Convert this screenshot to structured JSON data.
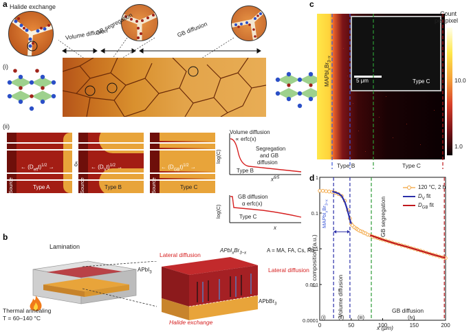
{
  "panel_a": {
    "letter": "a",
    "halide_title": "Halide exchange",
    "volume_diffusion": "Volume diffusion",
    "gb_segregation": "GB segregation",
    "gb_diffusion": "GB diffusion",
    "sub_i": "(i)",
    "sub_ii": "(ii)",
    "diff_A": "⟵ (Dₑₒₒt)¹ᐟ² ⟶",
    "diff_A_base": "(D",
    "diff_A_sub": "eff",
    "diff_B_sub": "V",
    "diff_C_sub": "GB",
    "diff_tail": "t)",
    "diff_exp": "1/2",
    "delta": "δ",
    "source": "Source",
    "type_a": "Type A",
    "type_b": "Type B",
    "type_c": "Type C",
    "plot1_vol": "Volume diffusion",
    "plot1_erfc": "∝ erfc(x)",
    "plot1_seg": "Segregation",
    "plot1_and": "and GB",
    "plot1_diff": "diffusion",
    "plot1_type": "Type B",
    "plot1_ylabel": "log(C)",
    "plot1_x": "x",
    "plot1_xexp": "6/5",
    "plot2_gb": "GB diffusion",
    "plot2_erfc": "α erfc(x)",
    "plot2_type": "Type C",
    "plot2_ylabel": "log(C)",
    "plot2_x": "x"
  },
  "panel_b": {
    "letter": "b",
    "lamination": "Lamination",
    "formula": "APbI",
    "formula_sub": "x",
    "formula_mid": "Br",
    "formula_sub2": "3−x",
    "sites": "A = MA, FA, Cs, Rb",
    "lateral_1": "Lateral diffusion",
    "lateral_2": "Lateral diffusion",
    "apbi3": "APbI",
    "apbi3_sub": "3",
    "apbbr3": "APbBr",
    "apbbr3_sub": "3",
    "thermal": "Thermal annealing",
    "temp": "T = 60–140 °C",
    "halide": "Halide exchange"
  },
  "panel_c": {
    "letter": "c",
    "count_1": "Count",
    "count_2": "per pixel",
    "tick_10": "10.0",
    "tick_1": "1.0",
    "mapbi": "MAPbI",
    "mapbi_sub": "x",
    "mapbi_mid": "Br",
    "mapbi_sub2": "3−x",
    "scalebar": "5 μm",
    "type_b": "Type B",
    "type_c": "Type C"
  },
  "panel_d": {
    "letter": "d",
    "legend_exp": "120 °C, 2 h",
    "legend_dv": "D",
    "legend_dv_sub": "V",
    "legend_dv_tail": " fit",
    "legend_dgb": "D",
    "legend_dgb_sub": "GB",
    "legend_dgb_tail": " fit",
    "ylabel": "I⁻ composition (a.u.)",
    "xlabel": "x (μm)",
    "gb_seg": "GB segregation",
    "vol_diff": "Volume diffusion",
    "gb_diff": "GB diffusion",
    "region_i": "(i)",
    "region_ii": "(ii)",
    "region_iii": "(iii)",
    "region_iv": "(iv)",
    "mapbi": "MAPbI",
    "mapbi_sub": "x",
    "mapbi_mid": "Br",
    "mapbi_sub2": "3−x"
  },
  "chart_data": {
    "type": "scatter",
    "xlabel": "x (μm)",
    "ylabel": "I⁻ composition (a.u.)",
    "xlim": [
      0,
      200
    ],
    "ylim": [
      0.0001,
      1
    ],
    "yscale": "log",
    "xticks": [
      "0",
      "50",
      "100",
      "150",
      "200"
    ],
    "yticks": [
      "0.0001",
      "0.001",
      "0.01",
      "0.1",
      "1"
    ],
    "grid": false,
    "legend_position": "top-right",
    "series": [
      {
        "name": "120 °C, 2 h",
        "color": "#f2a23a",
        "x": [
          0,
          5,
          10,
          15,
          20,
          25,
          30,
          35,
          40,
          45,
          48,
          50,
          52,
          55,
          58,
          60,
          62,
          65,
          68,
          70,
          73,
          76,
          80,
          84,
          88,
          92,
          96,
          100,
          105,
          110,
          115,
          120,
          125,
          130,
          135,
          140,
          145,
          150,
          155,
          160,
          165,
          170,
          175,
          180,
          185,
          190,
          195,
          200
        ],
        "y": [
          0.42,
          0.42,
          0.41,
          0.4,
          0.39,
          0.37,
          0.34,
          0.3,
          0.22,
          0.12,
          0.07,
          0.05,
          0.045,
          0.04,
          0.037,
          0.035,
          0.033,
          0.031,
          0.03,
          0.028,
          0.027,
          0.025,
          0.024,
          0.022,
          0.021,
          0.02,
          0.019,
          0.018,
          0.017,
          0.016,
          0.015,
          0.014,
          0.0135,
          0.0125,
          0.012,
          0.0113,
          0.0105,
          0.01,
          0.0094,
          0.0089,
          0.0083,
          0.0078,
          0.0073,
          0.0069,
          0.0065,
          0.0061,
          0.0058,
          0.0055
        ]
      },
      {
        "name": "D_V fit",
        "color": "#2b2fa8",
        "x": [
          20,
          25,
          30,
          35,
          40,
          43,
          46,
          48,
          50
        ],
        "y": [
          0.4,
          0.38,
          0.35,
          0.3,
          0.2,
          0.14,
          0.09,
          0.065,
          0.05
        ]
      },
      {
        "name": "D_GB fit",
        "color": "#c0181c",
        "x": [
          80,
          100,
          120,
          140,
          160,
          180,
          200
        ],
        "y": [
          0.024,
          0.018,
          0.014,
          0.0112,
          0.0088,
          0.0069,
          0.0055
        ]
      }
    ],
    "vlines": [
      {
        "x": 22,
        "color": "#2b2fa8",
        "style": "dashed"
      },
      {
        "x": 48,
        "color": "#2b2fa8",
        "style": "dashed"
      },
      {
        "x": 82,
        "color": "#2c9a35",
        "style": "dashed"
      },
      {
        "x": 198,
        "color": "#c0181c",
        "style": "dashed"
      }
    ]
  }
}
